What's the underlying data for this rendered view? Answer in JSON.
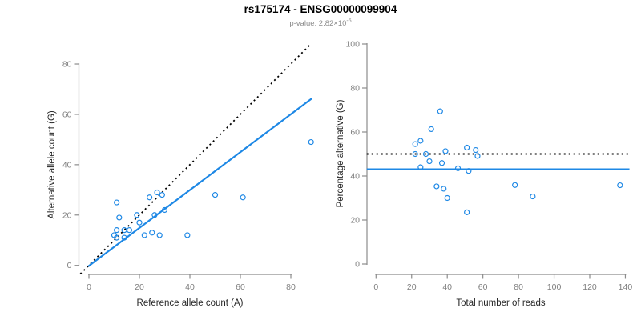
{
  "header": {
    "title": "rs175174 - ENSG00000099904",
    "subtitle_base": "p-value: 2.82×10",
    "subtitle_exponent": "-5"
  },
  "colors": {
    "accent_blue": "#1E88E5",
    "identity_black": "#000000",
    "axis_gray": "#8c8c8c",
    "tick_label_gray": "#7f7f7f",
    "axis_title_dark": "#262626"
  },
  "chart_data": [
    {
      "type": "scatter",
      "name": "allele-counts-panel",
      "xlabel": "Reference allele count (A)",
      "ylabel": "Alternative allele count (G)",
      "xticks": [
        0,
        20,
        40,
        60,
        80
      ],
      "yticks": [
        0,
        20,
        40,
        60,
        80
      ],
      "xlim": [
        -3.5,
        91.5
      ],
      "ylim": [
        -3.5,
        91.5
      ],
      "grid": false,
      "legend": "none",
      "points": [
        [
          88,
          49
        ],
        [
          50,
          28
        ],
        [
          61,
          27
        ],
        [
          24,
          27
        ],
        [
          27,
          29
        ],
        [
          29,
          28
        ],
        [
          11,
          25
        ],
        [
          12,
          19
        ],
        [
          19,
          20
        ],
        [
          20,
          17
        ],
        [
          26,
          20
        ],
        [
          30,
          22
        ],
        [
          11,
          14
        ],
        [
          14,
          14
        ],
        [
          16,
          14
        ],
        [
          10,
          12
        ],
        [
          14,
          11
        ],
        [
          22,
          12
        ],
        [
          25,
          13
        ],
        [
          28,
          12
        ],
        [
          39,
          12
        ],
        [
          11,
          11
        ]
      ],
      "lines": [
        {
          "name": "identity-line",
          "style": "dotted",
          "color": "#000000",
          "width": 1.8,
          "from": [
            -3.4,
            -3.4
          ],
          "to": [
            87.6,
            87.6
          ]
        },
        {
          "name": "fitted-ratio-line",
          "style": "solid",
          "color": "#1E88E5",
          "width": 2.2,
          "from": [
            -0.3,
            -0.4
          ],
          "to": [
            88.3,
            66.3
          ]
        }
      ]
    },
    {
      "type": "scatter",
      "name": "percentage-panel",
      "xlabel": "Total number of reads",
      "ylabel": "Percentage alternative (G)",
      "xticks": [
        0,
        20,
        40,
        60,
        80,
        100,
        120,
        140
      ],
      "yticks": [
        0,
        20,
        40,
        60,
        80,
        100
      ],
      "xlim": [
        -5.7,
        145.7
      ],
      "ylim": [
        0,
        100
      ],
      "grid": false,
      "legend": "none",
      "points": [
        [
          137,
          35.8
        ],
        [
          78,
          35.9
        ],
        [
          88,
          30.7
        ],
        [
          51,
          52.9
        ],
        [
          56,
          51.8
        ],
        [
          57,
          49.1
        ],
        [
          36,
          69.4
        ],
        [
          31,
          61.3
        ],
        [
          39,
          51.3
        ],
        [
          37,
          45.9
        ],
        [
          46,
          43.5
        ],
        [
          52,
          42.3
        ],
        [
          25,
          56.0
        ],
        [
          28,
          50.0
        ],
        [
          30,
          46.7
        ],
        [
          22,
          54.5
        ],
        [
          25,
          44.0
        ],
        [
          34,
          35.3
        ],
        [
          38,
          34.2
        ],
        [
          40,
          30.0
        ],
        [
          51,
          23.5
        ],
        [
          22,
          50.0
        ]
      ],
      "lines": [
        {
          "name": "fifty-percent-line",
          "style": "dotted",
          "color": "#000000",
          "width": 2,
          "from": [
            -5.2,
            50
          ],
          "to": [
            142.3,
            50
          ]
        },
        {
          "name": "mean-percentage-line",
          "style": "solid",
          "color": "#1E88E5",
          "width": 2.4,
          "from": [
            -5.2,
            43
          ],
          "to": [
            142.3,
            43
          ]
        }
      ]
    }
  ]
}
